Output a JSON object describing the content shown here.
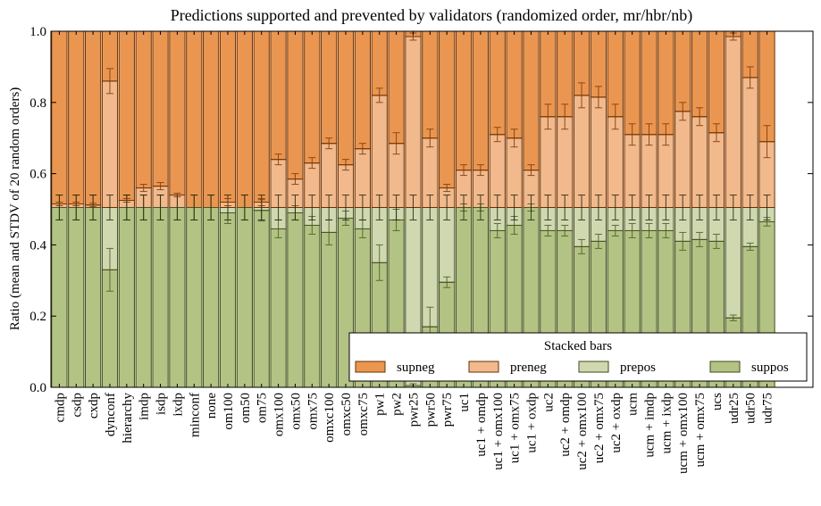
{
  "chart_data": {
    "type": "bar",
    "stacked": true,
    "title": "Predictions supported and prevented by validators (randomized order, mr/hbr/nb)",
    "xlabel": "",
    "ylabel": "Ratio (mean and STDV of 20 random orders)",
    "ylim": [
      0.0,
      1.0
    ],
    "yticks": [
      "0.0",
      "0.2",
      "0.4",
      "0.6",
      "0.8",
      "1.0"
    ],
    "grid": false,
    "legend": {
      "title": "Stacked bars",
      "placement": "lower-right",
      "entries": [
        "supneg",
        "preneg",
        "prepos",
        "suppos"
      ]
    },
    "colors": {
      "supneg": "#eb9650",
      "preneg": "#f2b98c",
      "prepos": "#d0d8b0",
      "suppos": "#b3c383",
      "neg_edge": "#6b3000",
      "pos_edge": "#3f4a1e"
    },
    "categories": [
      "cmdp",
      "csdp",
      "cxdp",
      "dynconf",
      "hierarchy",
      "imdp",
      "isdp",
      "ixdp",
      "minconf",
      "none",
      "om100",
      "om50",
      "om75",
      "omx100",
      "omx50",
      "omx75",
      "omxc100",
      "omxc50",
      "omxc75",
      "pw1",
      "pw2",
      "pwr25",
      "pwr50",
      "pwr75",
      "uc1",
      "uc1 + omdp",
      "uc1 + omx100",
      "uc1 + omx75",
      "uc1 + oxdp",
      "uc2",
      "uc2 + omdp",
      "uc2 + omx100",
      "uc2 + omx75",
      "uc2 + oxdp",
      "ucm",
      "ucm + imdp",
      "ucm + ixdp",
      "ucm + omx100",
      "ucm + omx75",
      "ucs",
      "udr25",
      "udr50",
      "udr75"
    ],
    "cumulative_levels_note_free": true,
    "series": [
      {
        "name": "suppos",
        "values": [
          0.505,
          0.505,
          0.505,
          0.33,
          0.505,
          0.505,
          0.505,
          0.505,
          0.505,
          0.505,
          0.49,
          0.505,
          0.497,
          0.445,
          0.49,
          0.455,
          0.435,
          0.475,
          0.445,
          0.35,
          0.47,
          0.005,
          0.17,
          0.295,
          0.505,
          0.505,
          0.44,
          0.455,
          0.505,
          0.44,
          0.44,
          0.395,
          0.41,
          0.44,
          0.44,
          0.44,
          0.44,
          0.41,
          0.415,
          0.41,
          0.195,
          0.395,
          0.465
        ],
        "std": [
          0.035,
          0.035,
          0.035,
          0.06,
          0.035,
          0.035,
          0.035,
          0.035,
          0.035,
          0.035,
          0.03,
          0.035,
          0.03,
          0.025,
          0.02,
          0.025,
          0.035,
          0.02,
          0.025,
          0.05,
          0.03,
          0.005,
          0.055,
          0.015,
          0.01,
          0.01,
          0.02,
          0.025,
          0.01,
          0.015,
          0.015,
          0.02,
          0.02,
          0.015,
          0.02,
          0.02,
          0.02,
          0.025,
          0.02,
          0.02,
          0.008,
          0.01,
          0.012
        ]
      },
      {
        "name": "prepos",
        "values": [
          0,
          0,
          0,
          0.175,
          0,
          0,
          0,
          0,
          0,
          0,
          0.015,
          0,
          0.008,
          0.06,
          0.015,
          0.05,
          0.07,
          0.03,
          0.06,
          0.155,
          0.035,
          0.5,
          0.335,
          0.21,
          0,
          0,
          0.065,
          0.05,
          0,
          0.065,
          0.065,
          0.11,
          0.095,
          0.065,
          0.065,
          0.065,
          0.065,
          0.095,
          0.09,
          0.095,
          0.31,
          0.11,
          0.04
        ],
        "std": [
          0.035,
          0.035,
          0.035,
          0.035,
          0.035,
          0.035,
          0.035,
          0.035,
          0.035,
          0.035,
          0.035,
          0.035,
          0.035,
          0.035,
          0.035,
          0.035,
          0.035,
          0.035,
          0.035,
          0.035,
          0.035,
          0.035,
          0.035,
          0.035,
          0.035,
          0.035,
          0.035,
          0.035,
          0.035,
          0.035,
          0.035,
          0.035,
          0.035,
          0.035,
          0.035,
          0.035,
          0.035,
          0.035,
          0.035,
          0.035,
          0.035,
          0.035,
          0.035
        ]
      },
      {
        "name": "preneg",
        "values": [
          0.01,
          0.01,
          0.007,
          0.355,
          0.02,
          0.055,
          0.06,
          0.035,
          0,
          0,
          0.015,
          0,
          0.015,
          0.135,
          0.08,
          0.125,
          0.18,
          0.12,
          0.165,
          0.315,
          0.18,
          0.48,
          0.195,
          0.055,
          0.105,
          0.105,
          0.205,
          0.195,
          0.105,
          0.255,
          0.255,
          0.315,
          0.31,
          0.255,
          0.205,
          0.205,
          0.205,
          0.27,
          0.255,
          0.21,
          0.48,
          0.365,
          0.185
        ],
        "std": [
          0.005,
          0.005,
          0.005,
          0.035,
          0.005,
          0.01,
          0.01,
          0.005,
          0,
          0,
          0.01,
          0,
          0.01,
          0.015,
          0.015,
          0.015,
          0.015,
          0.015,
          0.015,
          0.02,
          0.03,
          0.01,
          0.025,
          0.01,
          0.015,
          0.015,
          0.02,
          0.025,
          0.015,
          0.035,
          0.035,
          0.035,
          0.03,
          0.035,
          0.03,
          0.03,
          0.03,
          0.025,
          0.025,
          0.025,
          0.01,
          0.03,
          0.045
        ]
      },
      {
        "name": "supneg",
        "values": [
          0.485,
          0.485,
          0.488,
          0.14,
          0.475,
          0.44,
          0.435,
          0.46,
          0.495,
          0.495,
          0.48,
          0.495,
          0.48,
          0.36,
          0.415,
          0.37,
          0.315,
          0.375,
          0.33,
          0.18,
          0.315,
          0.015,
          0.3,
          0.44,
          0.39,
          0.39,
          0.29,
          0.3,
          0.39,
          0.24,
          0.24,
          0.18,
          0.185,
          0.24,
          0.29,
          0.29,
          0.29,
          0.225,
          0.24,
          0.285,
          0.015,
          0.13,
          0.31
        ]
      }
    ]
  }
}
